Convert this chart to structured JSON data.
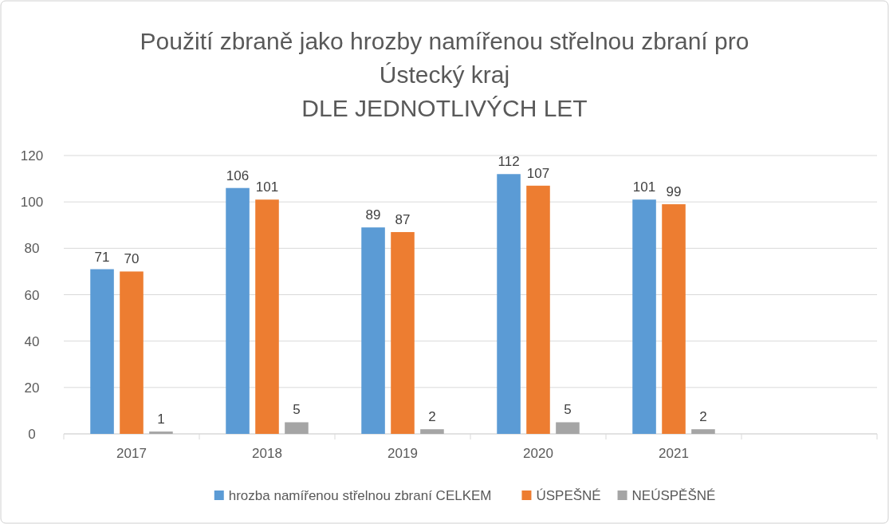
{
  "chart_data": {
    "type": "bar",
    "title": "Použití zbraně jako hrozby namířenou střelnou zbraní pro Ústecký kraj",
    "subtitle": "DLE JEDNOTLIVÝCH LET",
    "categories": [
      "2017",
      "2018",
      "2019",
      "2020",
      "2021",
      null
    ],
    "series": [
      {
        "name": "hrozba namířenou střelnou zbraní CELKEM",
        "color": "#5b9bd5",
        "values": [
          71,
          106,
          89,
          112,
          101,
          null
        ]
      },
      {
        "name": "ÚSPEŠNÉ",
        "color": "#ed7d31",
        "values": [
          70,
          101,
          87,
          107,
          99,
          null
        ]
      },
      {
        "name": "NEÚSPĚŠNÉ",
        "color": "#a5a5a5",
        "values": [
          1,
          5,
          2,
          5,
          2,
          null
        ]
      }
    ],
    "ylim": [
      0,
      120
    ],
    "yticks": [
      0,
      20,
      40,
      60,
      80,
      100,
      120
    ],
    "grid": "y",
    "data_labels": true,
    "legend": "bottom"
  }
}
